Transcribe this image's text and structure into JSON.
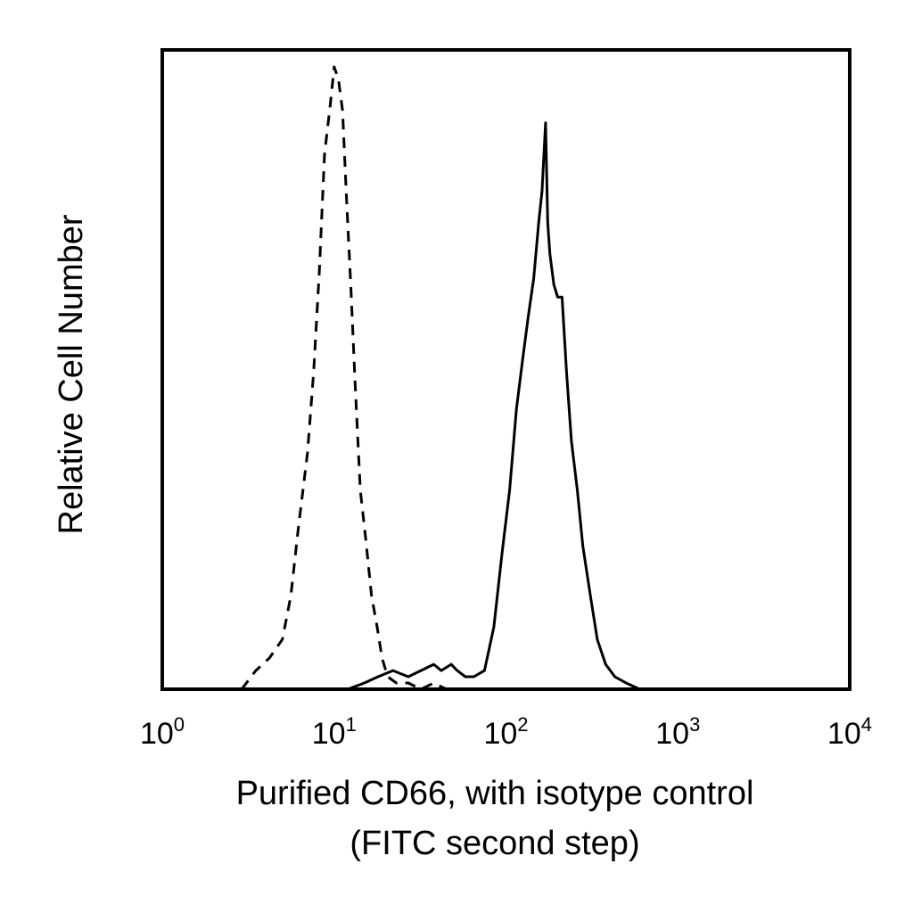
{
  "chart_data": {
    "type": "line",
    "xlabel": "Purified CD66, with isotype control",
    "xlabel_line2": "(FITC second step)",
    "ylabel": "Relative Cell Number",
    "x_scale": "log",
    "xlim": [
      1,
      10000
    ],
    "ylim": [
      0,
      1
    ],
    "grid": false,
    "x_ticks": [
      {
        "base": "10",
        "exp": "0"
      },
      {
        "base": "10",
        "exp": "1"
      },
      {
        "base": "10",
        "exp": "2"
      },
      {
        "base": "10",
        "exp": "3"
      },
      {
        "base": "10",
        "exp": "4"
      }
    ],
    "series": [
      {
        "style": "dashed",
        "color": "#000000",
        "x": [
          2.9,
          3.5,
          4.2,
          5.0,
          5.6,
          6.2,
          7.0,
          7.6,
          8.2,
          8.8,
          9.5,
          10.0,
          10.6,
          11.2,
          11.8,
          12.5,
          13.2,
          14.2,
          15.3,
          16.5,
          17.8,
          19.0,
          20.5,
          23,
          27,
          32,
          38,
          45,
          55,
          70,
          90,
          120,
          160,
          200,
          240,
          300,
          400,
          500,
          600
        ],
        "y": [
          0.0,
          0.03,
          0.05,
          0.08,
          0.15,
          0.26,
          0.38,
          0.51,
          0.67,
          0.86,
          0.94,
          1.0,
          0.98,
          0.93,
          0.79,
          0.65,
          0.5,
          0.32,
          0.24,
          0.15,
          0.1,
          0.05,
          0.02,
          0.01,
          0.01,
          0.0,
          0.01,
          0.0,
          0.0,
          0.0,
          0.0,
          0.0,
          0.0,
          0.0,
          0.0,
          0.0,
          0.0,
          0.0,
          0.0
        ]
      },
      {
        "style": "solid",
        "color": "#000000",
        "x": [
          12,
          15,
          18,
          22,
          27,
          32,
          38,
          42,
          48,
          52,
          58,
          65,
          75,
          85,
          95,
          105,
          115,
          125,
          135,
          145,
          155,
          162,
          170,
          175,
          180,
          190,
          200,
          212,
          225,
          240,
          260,
          280,
          310,
          340,
          380,
          430,
          500,
          600
        ],
        "y": [
          0.0,
          0.01,
          0.02,
          0.03,
          0.02,
          0.03,
          0.04,
          0.03,
          0.04,
          0.03,
          0.02,
          0.02,
          0.03,
          0.1,
          0.22,
          0.32,
          0.45,
          0.53,
          0.6,
          0.66,
          0.75,
          0.8,
          0.91,
          0.75,
          0.7,
          0.65,
          0.63,
          0.63,
          0.51,
          0.4,
          0.32,
          0.23,
          0.15,
          0.08,
          0.04,
          0.02,
          0.01,
          0.0
        ]
      }
    ]
  }
}
